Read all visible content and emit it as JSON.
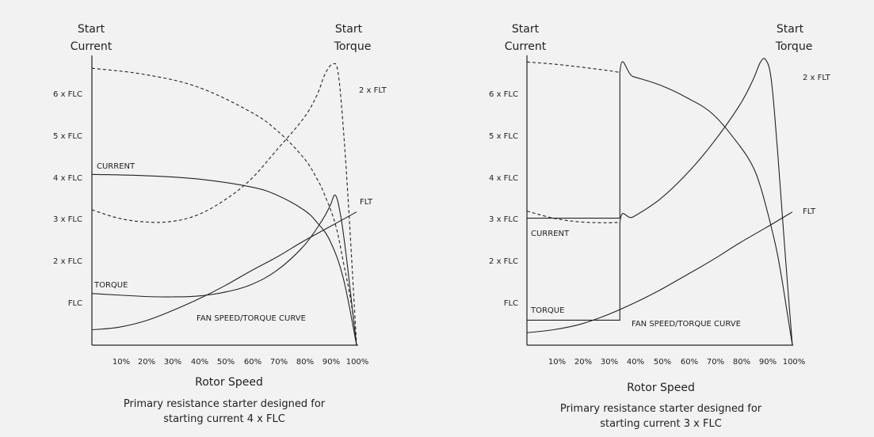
{
  "chart_data": [
    {
      "type": "line",
      "y_title_left": [
        "Start",
        "Current"
      ],
      "y_title_right": [
        "Start",
        "Torque"
      ],
      "y_ticks": [
        "FLC",
        "2 x FLC",
        "3 x FLC",
        "4 x FLC",
        "5 x FLC",
        "6 x FLC"
      ],
      "right_label": "2 x FLT",
      "x_ticks": [
        "10%",
        "20%",
        "30%",
        "40%",
        "50%",
        "60%",
        "70%",
        "80%",
        "90%",
        "100%"
      ],
      "xlabel": "Rotor Speed",
      "caption": [
        "Primary resistance starter designed for",
        "starting current 4 x FLC"
      ],
      "labels": {
        "current": "CURRENT",
        "torque": "TORQUE",
        "fan": "FAN SPEED/TORQUE CURVE",
        "flt": "FLT"
      },
      "series": [
        {
          "name": "CURRENT",
          "style": "solid",
          "x": [
            0,
            20,
            40,
            60,
            70,
            80,
            85,
            90,
            95,
            100
          ],
          "y": [
            4.1,
            4.07,
            3.99,
            3.8,
            3.6,
            3.25,
            2.95,
            2.5,
            1.6,
            0
          ]
        },
        {
          "name": "TORQUE",
          "style": "solid",
          "x": [
            0,
            20,
            30,
            40,
            50,
            60,
            70,
            80,
            87,
            90,
            92,
            94,
            96,
            98,
            100
          ],
          "y": [
            1.24,
            1.17,
            1.16,
            1.18,
            1.27,
            1.45,
            1.8,
            2.38,
            3.0,
            3.35,
            3.6,
            3.1,
            2.2,
            1.1,
            0
          ]
        },
        {
          "name": "FAN SPEED/TORQUE CURVE",
          "style": "solid",
          "x": [
            0,
            10,
            20,
            30,
            40,
            50,
            60,
            70,
            80,
            90,
            100
          ],
          "y": [
            0.37,
            0.43,
            0.58,
            0.82,
            1.1,
            1.42,
            1.78,
            2.12,
            2.5,
            2.85,
            3.2
          ]
        },
        {
          "name": "",
          "style": "dashed",
          "x": [
            0,
            20,
            40,
            60,
            70,
            80,
            85,
            88,
            92,
            95,
            98,
            100
          ],
          "y": [
            6.65,
            6.5,
            6.2,
            5.6,
            5.15,
            4.5,
            4.0,
            3.6,
            2.9,
            2.0,
            1.0,
            0
          ]
        },
        {
          "name": "",
          "style": "dashed",
          "x": [
            0,
            10,
            20,
            30,
            40,
            50,
            60,
            70,
            80,
            85,
            88,
            91,
            93,
            95,
            97,
            99,
            100
          ],
          "y": [
            3.25,
            3.05,
            2.96,
            2.97,
            3.13,
            3.48,
            3.98,
            4.7,
            5.45,
            6.0,
            6.5,
            6.75,
            6.55,
            5.2,
            3.3,
            1.1,
            0
          ]
        }
      ],
      "xlim": [
        0,
        100
      ],
      "ylim": [
        0,
        7
      ]
    },
    {
      "type": "line",
      "y_title_left": [
        "Start",
        "Current"
      ],
      "y_title_right": [
        "Start",
        "Torque"
      ],
      "y_ticks": [
        "FLC",
        "2 x FLC",
        "3 x FLC",
        "4 x FLC",
        "5 x FLC",
        "6 x FLC"
      ],
      "right_label": "2 x FLT",
      "x_ticks": [
        "10%",
        "20%",
        "30%",
        "40%",
        "50%",
        "60%",
        "70%",
        "80%",
        "90%",
        "100%"
      ],
      "xlabel": "Rotor Speed",
      "caption": [
        "Primary resistance starter designed for",
        "starting current 3 x FLC"
      ],
      "labels": {
        "current": "CURRENT",
        "torque": "TORQUE",
        "fan": "FAN SPEED/TORQUE CURVE",
        "flt": "FLT"
      },
      "series": [
        {
          "name": "CURRENT",
          "style": "solid",
          "x": [
            0,
            35,
            35,
            40,
            50,
            60,
            70,
            80,
            85,
            88,
            91,
            94,
            96,
            98,
            100
          ],
          "y": [
            3.05,
            3.05,
            6.55,
            6.45,
            6.25,
            5.95,
            5.55,
            4.8,
            4.3,
            3.8,
            3.1,
            2.3,
            1.6,
            0.8,
            0
          ]
        },
        {
          "name": "TORQUE",
          "style": "solid",
          "x": [
            0,
            35,
            35,
            40,
            50,
            60,
            70,
            80,
            85,
            88,
            90,
            92,
            94,
            96,
            98,
            100
          ],
          "y": [
            0.6,
            0.6,
            2.95,
            3.08,
            3.5,
            4.1,
            4.85,
            5.75,
            6.35,
            6.8,
            6.85,
            6.4,
            5.0,
            3.3,
            1.6,
            0
          ]
        },
        {
          "name": "FAN SPEED/TORQUE CURVE",
          "style": "solid",
          "x": [
            0,
            10,
            20,
            30,
            40,
            50,
            60,
            70,
            80,
            90,
            100
          ],
          "y": [
            0.3,
            0.37,
            0.5,
            0.72,
            1.0,
            1.32,
            1.68,
            2.05,
            2.45,
            2.82,
            3.2
          ]
        },
        {
          "name": "",
          "style": "dashed",
          "x": [
            0,
            10,
            20,
            30,
            35
          ],
          "y": [
            6.8,
            6.75,
            6.68,
            6.6,
            6.55
          ]
        },
        {
          "name": "",
          "style": "dashed",
          "x": [
            0,
            10,
            20,
            30,
            35
          ],
          "y": [
            3.22,
            3.05,
            2.96,
            2.94,
            2.95
          ]
        }
      ],
      "vlines": [
        35
      ],
      "xlim": [
        0,
        100
      ],
      "ylim": [
        0,
        7
      ]
    }
  ]
}
